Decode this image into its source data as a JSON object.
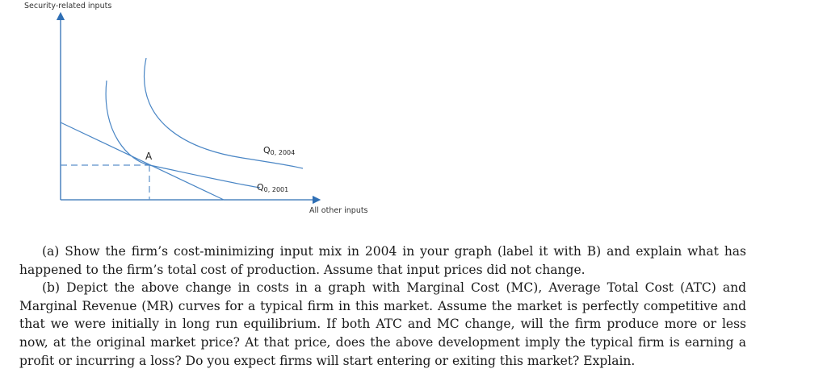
{
  "figure": {
    "y_axis_label": "Security-related inputs",
    "x_axis_label": "All other inputs",
    "point_label": "A",
    "isoquant_2004": {
      "main": "Q",
      "sub": "0, 2004"
    },
    "isoquant_2001": {
      "main": "Q",
      "sub": "0, 2001"
    },
    "colors": {
      "axis": "#2f6fb5",
      "curve": "#4a86c5",
      "dashed": "#5b8fc9"
    }
  },
  "questions": {
    "part_a": "(a) Show the firm’s cost-minimizing input mix in 2004 in your graph (label it with B) and explain what has happened to the firm’s total cost of production. Assume that input prices did not change.",
    "part_b": "(b) Depict the above change in costs in a graph with Marginal Cost (MC), Average Total Cost (ATC) and Marginal Revenue (MR) curves for a typical firm in this market. Assume the market is perfectly competitive and that we were initially in long run equilibrium. If both ATC and MC change, will the firm produce more or less now, at the original market price? At that price, does the above development imply the typical firm is earning a profit or incurring a loss? Do you expect firms will start entering or exiting this market? Explain."
  }
}
